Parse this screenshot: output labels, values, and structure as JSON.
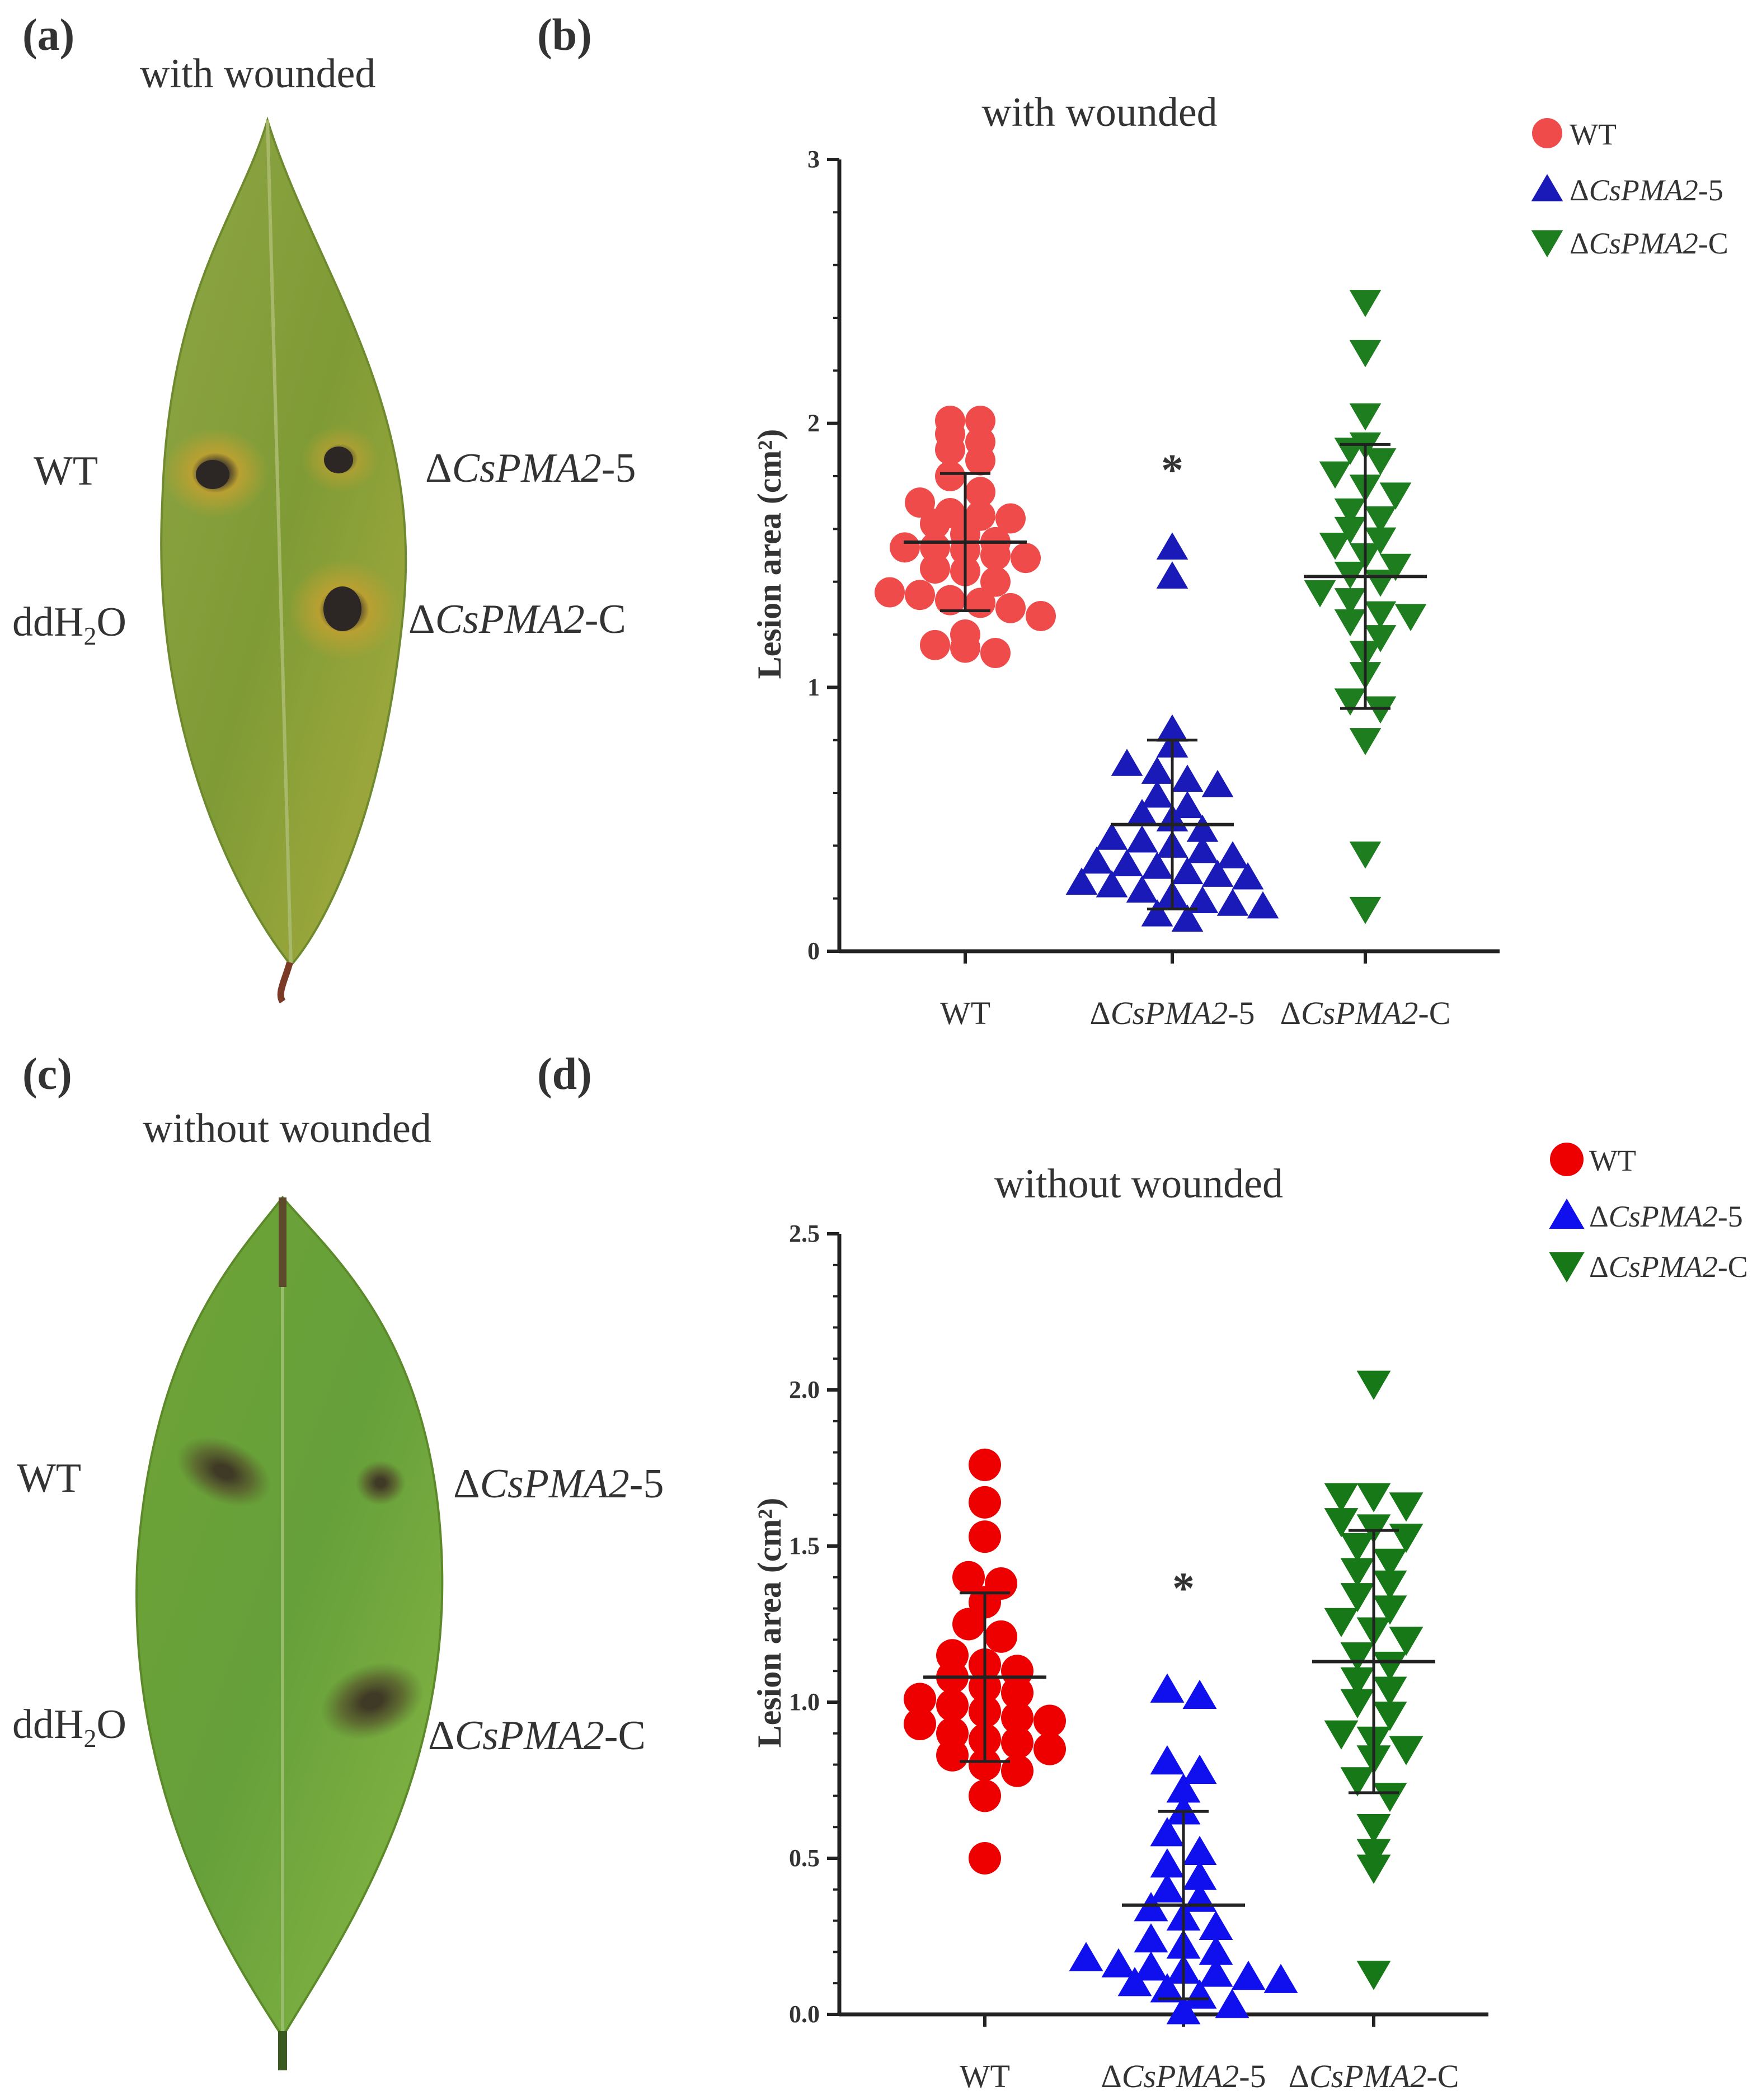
{
  "panels": {
    "a": {
      "label": "(a)",
      "title": "with wounded"
    },
    "b": {
      "label": "(b)"
    },
    "c": {
      "label": "(c)",
      "title": "without wounded"
    },
    "d": {
      "label": "(d)"
    }
  },
  "leaf_labels": {
    "wt": "WT",
    "ddh2o_main": "ddH",
    "ddh2o_sub": "2",
    "ddh2o_tail": "O",
    "delta": "Δ",
    "mut_name": "CsPMA2",
    "mut_suffix": "-5",
    "comp_suffix": "-C"
  },
  "colors": {
    "wt_wounded": "#f04b4b",
    "mut_wounded": "#1a1ab8",
    "comp_wounded": "#1e7d1e",
    "wt_unwounded": "#ee0000",
    "mut_unwounded": "#1010ee",
    "comp_unwounded": "#167816",
    "leaf_wounded": "#8aa33a",
    "leaf_unwounded": "#73a83a"
  },
  "chart_data": [
    {
      "id": "b",
      "type": "scatter",
      "title": "with wounded",
      "xlabel": "",
      "ylabel": "Lesion area (cm²)",
      "ylim": [
        0,
        3
      ],
      "yticks": [
        0,
        1,
        2,
        3
      ],
      "categories": [
        "WT",
        "ΔCsPMA2-5",
        "ΔCsPMA2-C"
      ],
      "legend_position": "top-right",
      "significance": [
        {
          "category": "ΔCsPMA2-5",
          "mark": "*",
          "y": 1.83
        }
      ],
      "series": [
        {
          "name": "WT",
          "marker": "circle",
          "mean": 1.55,
          "sd": 0.26,
          "values": [
            2.01,
            2.01,
            1.96,
            1.93,
            1.9,
            1.86,
            1.8,
            1.74,
            1.7,
            1.66,
            1.65,
            1.64,
            1.62,
            1.58,
            1.55,
            1.53,
            1.53,
            1.52,
            1.5,
            1.49,
            1.45,
            1.44,
            1.4,
            1.36,
            1.35,
            1.33,
            1.32,
            1.3,
            1.27,
            1.2,
            1.16,
            1.15,
            1.13
          ]
        },
        {
          "name": "ΔCsPMA2-5",
          "marker": "triangle-up",
          "mean": 0.48,
          "sd": 0.32,
          "values": [
            1.53,
            1.42,
            0.84,
            0.78,
            0.71,
            0.68,
            0.65,
            0.63,
            0.59,
            0.55,
            0.52,
            0.5,
            0.46,
            0.43,
            0.42,
            0.4,
            0.38,
            0.36,
            0.34,
            0.33,
            0.32,
            0.3,
            0.29,
            0.28,
            0.26,
            0.25,
            0.23,
            0.21,
            0.19,
            0.18,
            0.17,
            0.14,
            0.12
          ]
        },
        {
          "name": "ΔCsPMA2-C",
          "marker": "triangle-down",
          "mean": 1.42,
          "sd": 0.5,
          "values": [
            2.46,
            2.27,
            2.03,
            1.92,
            1.9,
            1.86,
            1.81,
            1.76,
            1.73,
            1.67,
            1.64,
            1.6,
            1.56,
            1.54,
            1.5,
            1.46,
            1.43,
            1.4,
            1.36,
            1.33,
            1.28,
            1.27,
            1.25,
            1.19,
            1.13,
            1.05,
            0.95,
            0.92,
            0.8,
            0.37,
            0.16
          ]
        }
      ]
    },
    {
      "id": "d",
      "type": "scatter",
      "title": "without wounded",
      "xlabel": "",
      "ylabel": "Lesion area (cm²)",
      "ylim": [
        0,
        2.5
      ],
      "yticks": [
        0.0,
        0.5,
        1.0,
        1.5,
        2.0,
        2.5
      ],
      "categories": [
        "WT",
        "ΔCsPMA2-5",
        "ΔCsPMA2-C"
      ],
      "legend_position": "top-right",
      "significance": [
        {
          "category": "ΔCsPMA2-5",
          "mark": "*",
          "y": 1.37
        }
      ],
      "series": [
        {
          "name": "WT",
          "marker": "circle",
          "mean": 1.08,
          "sd": 0.27,
          "values": [
            1.76,
            1.64,
            1.53,
            1.4,
            1.38,
            1.32,
            1.25,
            1.21,
            1.15,
            1.12,
            1.1,
            1.08,
            1.05,
            1.03,
            1.01,
            0.99,
            0.97,
            0.95,
            0.94,
            0.93,
            0.9,
            0.88,
            0.87,
            0.85,
            0.83,
            0.8,
            0.78,
            0.7,
            0.5
          ]
        },
        {
          "name": "ΔCsPMA2-5",
          "marker": "triangle-up",
          "mean": 0.35,
          "sd": 0.3,
          "values": [
            1.04,
            1.02,
            0.81,
            0.78,
            0.72,
            0.65,
            0.58,
            0.52,
            0.48,
            0.44,
            0.4,
            0.37,
            0.34,
            0.31,
            0.28,
            0.24,
            0.22,
            0.2,
            0.18,
            0.16,
            0.15,
            0.14,
            0.13,
            0.12,
            0.11,
            0.1,
            0.08,
            0.06,
            0.03,
            0.01
          ]
        },
        {
          "name": "ΔCsPMA2-C",
          "marker": "triangle-down",
          "mean": 1.13,
          "sd": 0.42,
          "values": [
            2.02,
            1.66,
            1.66,
            1.63,
            1.58,
            1.56,
            1.53,
            1.5,
            1.45,
            1.42,
            1.38,
            1.34,
            1.3,
            1.26,
            1.23,
            1.2,
            1.15,
            1.12,
            1.07,
            1.04,
            1.0,
            0.96,
            0.9,
            0.88,
            0.85,
            0.82,
            0.75,
            0.7,
            0.6,
            0.52,
            0.47,
            0.13
          ]
        }
      ]
    }
  ]
}
